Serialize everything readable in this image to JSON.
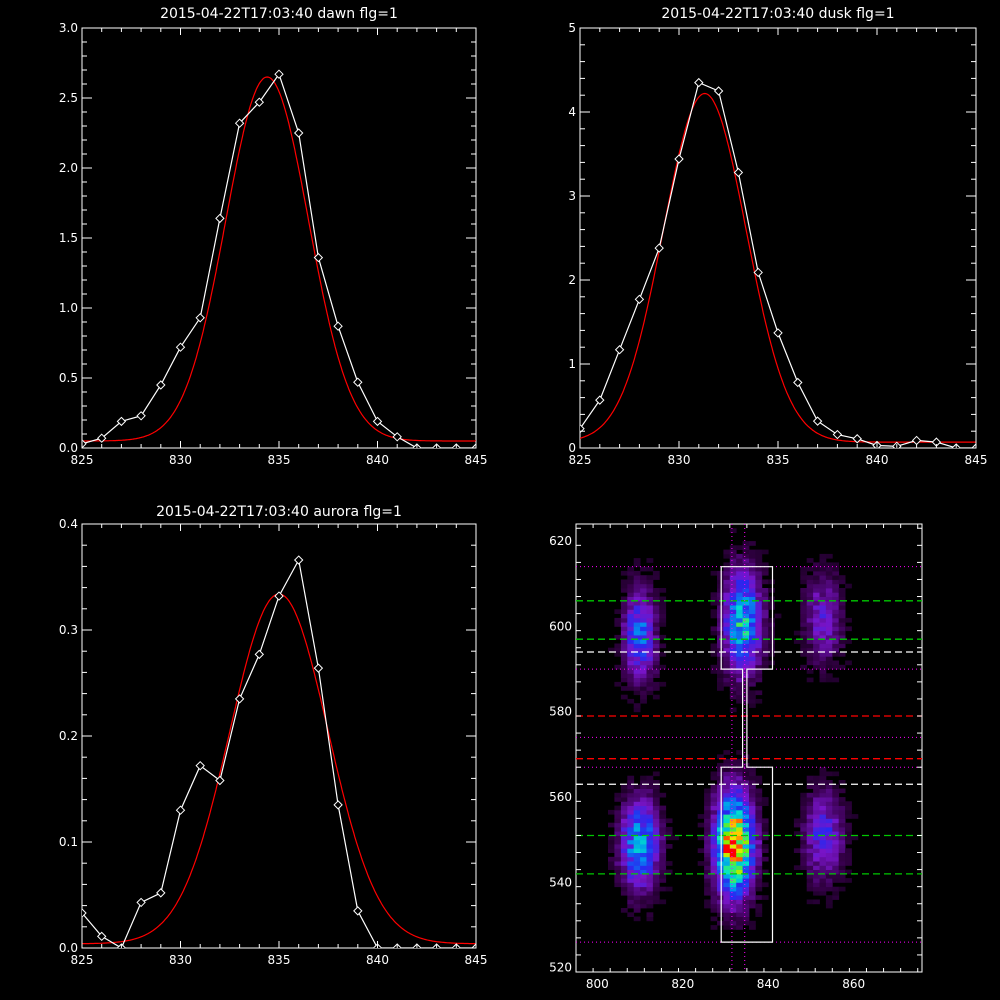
{
  "chart_data": [
    {
      "type": "line",
      "title": "2015-04-22T17:03:40 dawn flg=1",
      "xlim": [
        825,
        845
      ],
      "ylim": [
        0,
        3.0
      ],
      "xticks": [
        "825",
        "830",
        "835",
        "840",
        "845"
      ],
      "yticks": [
        "0.0",
        "0.5",
        "1.0",
        "1.5",
        "2.0",
        "2.5",
        "3.0"
      ],
      "series": [
        {
          "kind": "observed",
          "marker": "diamond",
          "color": "#ffffff",
          "x": [
            825,
            826,
            827,
            828,
            829,
            830,
            831,
            832,
            833,
            834,
            835,
            836,
            837,
            838,
            839,
            840,
            841,
            842,
            843,
            844,
            845
          ],
          "y": [
            0.03,
            0.07,
            0.19,
            0.23,
            0.45,
            0.72,
            0.93,
            1.64,
            2.32,
            2.47,
            2.67,
            2.25,
            1.36,
            0.87,
            0.47,
            0.19,
            0.08,
            0.0,
            0.0,
            0.0,
            0.0
          ]
        },
        {
          "kind": "fit",
          "color": "#ff0000",
          "gauss": {
            "amp": 2.6,
            "center": 834.4,
            "sigma": 2.1,
            "base": 0.05
          }
        }
      ]
    },
    {
      "type": "line",
      "title": "2015-04-22T17:03:40 dusk flg=1",
      "xlim": [
        825,
        845
      ],
      "ylim": [
        0,
        5
      ],
      "xticks": [
        "825",
        "830",
        "835",
        "840",
        "845"
      ],
      "yticks": [
        "0",
        "1",
        "2",
        "3",
        "4",
        "5"
      ],
      "series": [
        {
          "kind": "observed",
          "marker": "diamond",
          "color": "#ffffff",
          "x": [
            825,
            826,
            827,
            828,
            829,
            830,
            831,
            832,
            833,
            834,
            835,
            836,
            837,
            838,
            839,
            840,
            841,
            842,
            843,
            844,
            845
          ],
          "y": [
            0.23,
            0.57,
            1.17,
            1.77,
            2.38,
            3.44,
            4.35,
            4.25,
            3.28,
            2.09,
            1.37,
            0.78,
            0.32,
            0.16,
            0.11,
            0.03,
            0.02,
            0.09,
            0.07,
            0.0,
            0.0
          ]
        },
        {
          "kind": "fit",
          "color": "#ff0000",
          "gauss": {
            "amp": 4.15,
            "center": 831.3,
            "sigma": 2.1,
            "base": 0.07
          }
        }
      ]
    },
    {
      "type": "line",
      "title": "2015-04-22T17:03:40 aurora flg=1",
      "xlim": [
        825,
        845
      ],
      "ylim": [
        0,
        0.4
      ],
      "xticks": [
        "825",
        "830",
        "835",
        "840",
        "845"
      ],
      "yticks": [
        "0.0",
        "0.1",
        "0.2",
        "0.3",
        "0.4"
      ],
      "series": [
        {
          "kind": "observed",
          "marker": "diamond",
          "color": "#ffffff",
          "x": [
            825,
            826,
            827,
            828,
            829,
            830,
            831,
            832,
            833,
            834,
            835,
            836,
            837,
            838,
            839,
            840,
            841,
            842,
            843,
            844,
            845
          ],
          "y": [
            0.033,
            0.011,
            0.0,
            0.043,
            0.052,
            0.13,
            0.172,
            0.158,
            0.235,
            0.277,
            0.332,
            0.366,
            0.264,
            0.135,
            0.035,
            0.0,
            0.0,
            0.0,
            0.0,
            0.0,
            0.0
          ]
        },
        {
          "kind": "fit",
          "color": "#ff0000",
          "gauss": {
            "amp": 0.33,
            "center": 835.0,
            "sigma": 2.5,
            "base": 0.004
          }
        }
      ]
    },
    {
      "type": "heatmap",
      "title": "",
      "xlim": [
        795,
        876
      ],
      "ylim": [
        519,
        624
      ],
      "xticks": [
        "800",
        "820",
        "840",
        "860"
      ],
      "yticks": [
        "520",
        "540",
        "560",
        "580",
        "600",
        "620"
      ],
      "blobs": [
        {
          "x": 810,
          "y": 549,
          "sx": 3,
          "sy": 7,
          "amp": 0.55
        },
        {
          "x": 810,
          "y": 598,
          "sx": 2.5,
          "sy": 7,
          "amp": 0.45
        },
        {
          "x": 832,
          "y": 549,
          "sx": 3,
          "sy": 8,
          "amp": 1.0
        },
        {
          "x": 834,
          "y": 601,
          "sx": 3,
          "sy": 8,
          "amp": 0.6
        },
        {
          "x": 853,
          "y": 551,
          "sx": 3,
          "sy": 7,
          "amp": 0.32
        },
        {
          "x": 853,
          "y": 602,
          "sx": 3,
          "sy": 7,
          "amp": 0.25
        }
      ],
      "hlines": [
        {
          "y": 606,
          "color": "#00c800",
          "style": "dash"
        },
        {
          "y": 597,
          "color": "#00c800",
          "style": "dash"
        },
        {
          "y": 594,
          "color": "#ffffff",
          "style": "dash"
        },
        {
          "y": 579,
          "color": "#ff0000",
          "style": "dash"
        },
        {
          "y": 569,
          "color": "#ff0000",
          "style": "dash"
        },
        {
          "y": 563,
          "color": "#ffffff",
          "style": "dash"
        },
        {
          "y": 551,
          "color": "#00c800",
          "style": "dash"
        },
        {
          "y": 542,
          "color": "#00c800",
          "style": "dash"
        },
        {
          "y": 614,
          "color": "#ff00ff",
          "style": "dot"
        },
        {
          "y": 590,
          "color": "#ff00ff",
          "style": "dot"
        },
        {
          "y": 574,
          "color": "#ff00ff",
          "style": "dot"
        },
        {
          "y": 567,
          "color": "#ff00ff",
          "style": "dot"
        },
        {
          "y": 526,
          "color": "#ff00ff",
          "style": "dot"
        }
      ],
      "vlines": [
        {
          "x": 831.5,
          "color": "#ff00ff",
          "style": "dot"
        },
        {
          "x": 834.5,
          "color": "#ff00ff",
          "style": "dot"
        }
      ],
      "box_outline": [
        [
          829,
          614
        ],
        [
          841,
          614
        ],
        [
          841,
          590
        ],
        [
          835,
          590
        ],
        [
          835,
          567
        ],
        [
          841,
          567
        ],
        [
          841,
          526
        ],
        [
          829,
          526
        ],
        [
          829,
          567
        ],
        [
          834,
          567
        ],
        [
          834,
          590
        ],
        [
          829,
          590
        ]
      ]
    }
  ]
}
